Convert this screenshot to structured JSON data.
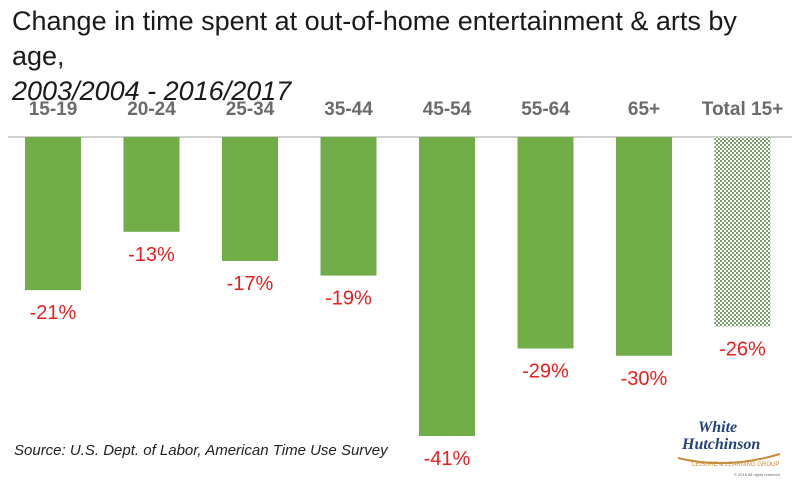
{
  "title": {
    "line1": "Change in time spent at out-of-home entertainment & arts by age,",
    "line2": "2003/2004 - 2016/2017"
  },
  "source": "Source: U.S. Dept. of Labor, American Time Use Survey",
  "logo": {
    "line1": "White",
    "line2": "Hutchinson",
    "tagline": "LEISURE & LEARNING GROUP",
    "copyright": "© 2019 All rights reserved"
  },
  "colors": {
    "bar": "#70ad47",
    "total_bar_pattern": "#4f7f3c",
    "label": "#ee1c1c",
    "category": "#6b6b6b",
    "baseline": "#bfbfbf"
  },
  "chart_data": {
    "type": "bar",
    "categories": [
      "15-19",
      "20-24",
      "25-34",
      "35-44",
      "45-54",
      "55-64",
      "65+",
      "Total 15+"
    ],
    "values": [
      -21,
      -13,
      -17,
      -19,
      -41,
      -29,
      -30,
      -26
    ],
    "labels": [
      "-21%",
      "-13%",
      "-17%",
      "-19%",
      "-41%",
      "-29%",
      "-30%",
      "-26%"
    ],
    "patterned": [
      false,
      false,
      false,
      false,
      false,
      false,
      false,
      true
    ],
    "unit": "%",
    "ylim": [
      -41,
      0
    ],
    "category_axis_position": "top",
    "grid": false,
    "legend": "none"
  }
}
